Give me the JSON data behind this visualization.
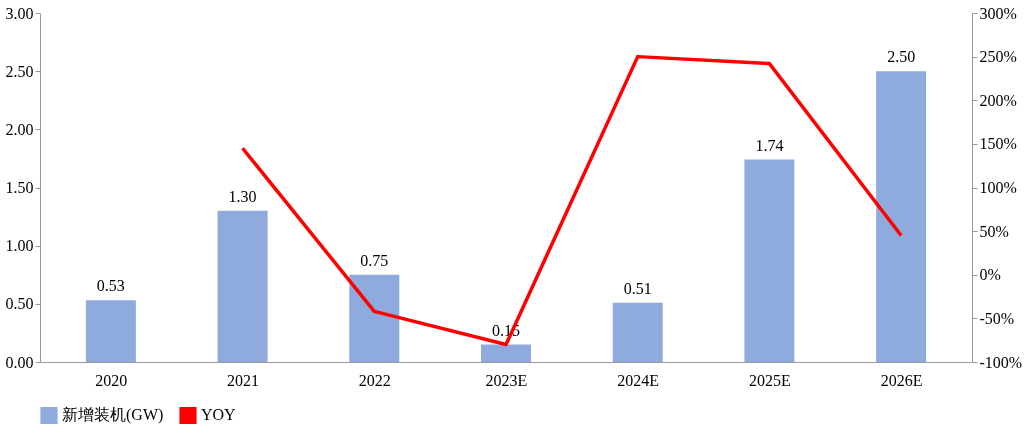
{
  "chart_data": {
    "type": "bar",
    "categories": [
      "2020",
      "2021",
      "2022",
      "2023E",
      "2024E",
      "2025E",
      "2026E"
    ],
    "series": [
      {
        "name": "新增装机(GW)",
        "color": "#8faadc",
        "values": [
          0.53,
          1.3,
          0.75,
          0.15,
          0.51,
          1.74,
          2.5
        ],
        "value_labels": [
          "0.53",
          "1.30",
          "0.75",
          "0.15",
          "0.51",
          "1.74",
          "2.50"
        ]
      },
      {
        "name": "YOY",
        "type": "line",
        "axis": "y2",
        "color": "#ff0000",
        "values": [
          null,
          145,
          -42,
          -80,
          250,
          242,
          45
        ]
      }
    ],
    "ylim": [
      0,
      3
    ],
    "yticks": [
      {
        "value": 0,
        "label": "0.00"
      },
      {
        "value": 0.5,
        "label": "0.50"
      },
      {
        "value": 1,
        "label": "1.00"
      },
      {
        "value": 1.5,
        "label": "1.50"
      },
      {
        "value": 2,
        "label": "2.00"
      },
      {
        "value": 2.5,
        "label": "2.50"
      },
      {
        "value": 3,
        "label": "3.00"
      }
    ],
    "y2lim": [
      -100,
      300
    ],
    "y2ticks": [
      {
        "value": -100,
        "label": "-100%"
      },
      {
        "value": -50,
        "label": "-50%"
      },
      {
        "value": 0,
        "label": "0%"
      },
      {
        "value": 50,
        "label": "50%"
      },
      {
        "value": 100,
        "label": "100%"
      },
      {
        "value": 150,
        "label": "150%"
      },
      {
        "value": 200,
        "label": "200%"
      },
      {
        "value": 250,
        "label": "250%"
      },
      {
        "value": 300,
        "label": "300%"
      }
    ],
    "grid": false,
    "legend": "bottom",
    "marker": "none",
    "line_style": "solid"
  }
}
